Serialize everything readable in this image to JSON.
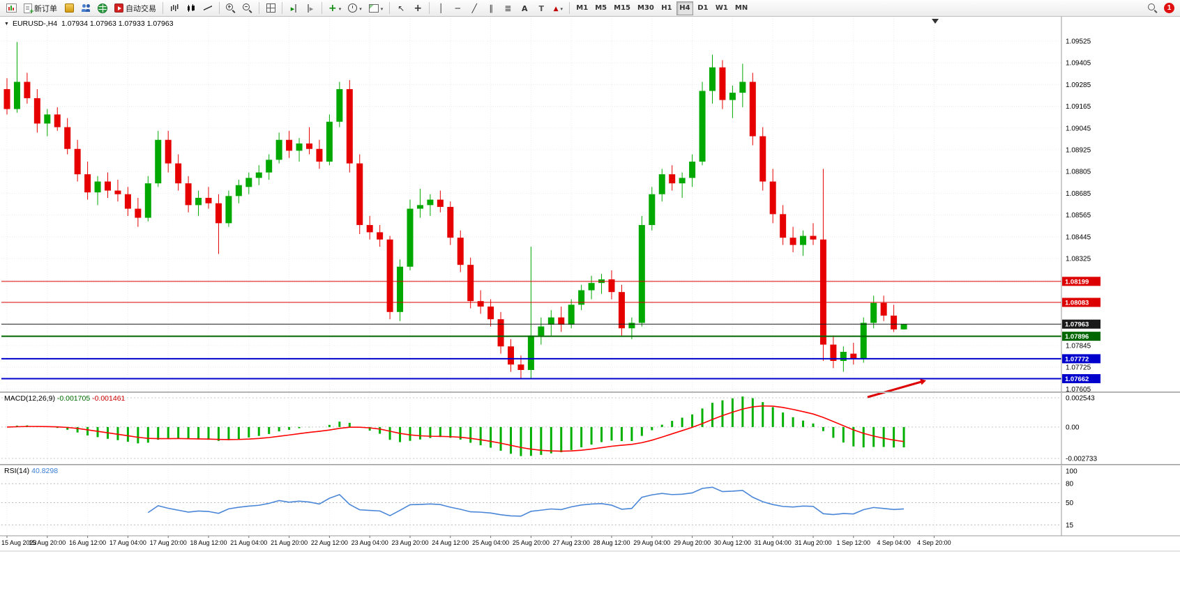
{
  "toolbar": {
    "new_order": "新订单",
    "autotrading": "自动交易",
    "timeframes": [
      "M1",
      "M5",
      "M15",
      "M30",
      "H1",
      "H4",
      "D1",
      "W1",
      "MN"
    ],
    "active_timeframe": "H4",
    "notification_badge": "1",
    "icons": {
      "new_chart": "mini-candle-chart",
      "new_order": "document-plus",
      "market_watch": "gold-panel",
      "community": "two-users",
      "web": "green-globe",
      "autotrading": "red-play-square",
      "chart_bars": "ohlc-bars",
      "chart_candles": "candlesticks",
      "chart_line": "line-chart",
      "zoom_in": "magnifier-plus",
      "zoom_out": "magnifier-minus",
      "tile_windows": "window-grid",
      "auto_scroll": "green-triangle-bar",
      "chart_shift": "bar-triangle",
      "indicators": "green-plus",
      "periods": "clock",
      "templates": "template-sheet",
      "cursor": "pointer-arrow",
      "crosshair": "cross",
      "vertical_line": "vertical-bar",
      "horizontal_line": "horizontal-bar",
      "trendline": "diagonal-line",
      "channel": "parallel-lines",
      "fibonacci": "stacked-lines",
      "text": "letter-A",
      "text_label": "letter-T",
      "arrows_tool": "red-triangle",
      "search": "magnifier"
    }
  },
  "chart": {
    "symbol_period": "EURUSD-,H4",
    "ohlc": "1.07934 1.07963 1.07933 1.07963",
    "macd_title": "MACD(12,26,9)",
    "macd_value_main": "-0.001705",
    "macd_value_signal": "-0.001461",
    "rsi_title": "RSI(14)",
    "rsi_value": "40.8298"
  },
  "chart_data": {
    "type": "candlestick",
    "symbol": "EURUSD-",
    "timeframe": "H4",
    "last_ohlc": {
      "open": 1.07934,
      "high": 1.07963,
      "low": 1.07933,
      "close": 1.07963
    },
    "price_axis": {
      "max_label": 1.09525,
      "min_label": 1.07605,
      "step": 0.0012
    },
    "time_labels": [
      "15 Aug 2023",
      "15 Aug 20:00",
      "16 Aug 12:00",
      "17 Aug 04:00",
      "17 Aug 20:00",
      "18 Aug 12:00",
      "21 Aug 04:00",
      "21 Aug 20:00",
      "22 Aug 12:00",
      "23 Aug 04:00",
      "23 Aug 20:00",
      "24 Aug 12:00",
      "25 Aug 04:00",
      "25 Aug 20:00",
      "27 Aug 23:00",
      "28 Aug 12:00",
      "29 Aug 04:00",
      "29 Aug 20:00",
      "30 Aug 12:00",
      "31 Aug 04:00",
      "31 Aug 20:00",
      "1 Sep 12:00",
      "4 Sep 04:00",
      "4 Sep 20:00"
    ],
    "candles": [
      [
        1.0926,
        1.0932,
        1.0912,
        1.0915
      ],
      [
        1.0915,
        1.0952,
        1.0913,
        1.093
      ],
      [
        1.093,
        1.0935,
        1.0918,
        1.0921
      ],
      [
        1.0921,
        1.0926,
        1.0902,
        1.0907
      ],
      [
        1.0907,
        1.0915,
        1.09,
        1.0912
      ],
      [
        1.0912,
        1.0916,
        1.0903,
        1.0905
      ],
      [
        1.0905,
        1.091,
        1.089,
        1.0893
      ],
      [
        1.0893,
        1.0898,
        1.0875,
        1.0879
      ],
      [
        1.0879,
        1.0886,
        1.0865,
        1.0869
      ],
      [
        1.0869,
        1.0878,
        1.0862,
        1.0875
      ],
      [
        1.0875,
        1.088,
        1.0866,
        1.087
      ],
      [
        1.087,
        1.0876,
        1.0864,
        1.0868
      ],
      [
        1.0868,
        1.0872,
        1.0856,
        1.086
      ],
      [
        1.086,
        1.0866,
        1.085,
        1.0855
      ],
      [
        1.0855,
        1.0878,
        1.0853,
        1.0874
      ],
      [
        1.0874,
        1.0903,
        1.0872,
        1.0898
      ],
      [
        1.0898,
        1.0903,
        1.088,
        1.0885
      ],
      [
        1.0885,
        1.089,
        1.087,
        1.0874
      ],
      [
        1.0874,
        1.0878,
        1.0858,
        1.0862
      ],
      [
        1.0862,
        1.087,
        1.0856,
        1.0866
      ],
      [
        1.0866,
        1.0872,
        1.086,
        1.0863
      ],
      [
        1.0863,
        1.0868,
        1.0835,
        1.0852
      ],
      [
        1.0852,
        1.087,
        1.085,
        1.0867
      ],
      [
        1.0867,
        1.0876,
        1.0863,
        1.0873
      ],
      [
        1.0872,
        1.088,
        1.0868,
        1.0877
      ],
      [
        1.0877,
        1.0884,
        1.0873,
        1.088
      ],
      [
        1.088,
        1.089,
        1.0876,
        1.0887
      ],
      [
        1.0887,
        1.0902,
        1.0885,
        1.0898
      ],
      [
        1.0898,
        1.0903,
        1.0888,
        1.0892
      ],
      [
        1.0892,
        1.0899,
        1.0886,
        1.0896
      ],
      [
        1.0896,
        1.0905,
        1.089,
        1.0893
      ],
      [
        1.0893,
        1.0898,
        1.0882,
        1.0886
      ],
      [
        1.0886,
        1.0912,
        1.0884,
        1.0908
      ],
      [
        1.0908,
        1.093,
        1.0905,
        1.0926
      ],
      [
        1.0926,
        1.0931,
        1.088,
        1.0885
      ],
      [
        1.0885,
        1.089,
        1.0846,
        1.0851
      ],
      [
        1.0851,
        1.0856,
        1.0843,
        1.0847
      ],
      [
        1.0847,
        1.0851,
        1.0839,
        1.0843
      ],
      [
        1.0843,
        1.0845,
        1.0799,
        1.0803
      ],
      [
        1.0803,
        1.0832,
        1.0798,
        1.0828
      ],
      [
        1.0828,
        1.0865,
        1.0826,
        1.086
      ],
      [
        1.086,
        1.0871,
        1.0855,
        1.0862
      ],
      [
        1.0862,
        1.0868,
        1.0856,
        1.0865
      ],
      [
        1.0865,
        1.087,
        1.0858,
        1.0861
      ],
      [
        1.0861,
        1.0864,
        1.084,
        1.0844
      ],
      [
        1.0844,
        1.0848,
        1.0825,
        1.0829
      ],
      [
        1.0829,
        1.0833,
        1.0805,
        1.0809
      ],
      [
        1.0809,
        1.0815,
        1.0802,
        1.0806
      ],
      [
        1.0806,
        1.081,
        1.0795,
        1.0799
      ],
      [
        1.0799,
        1.0803,
        1.078,
        1.0784
      ],
      [
        1.0784,
        1.0788,
        1.077,
        1.0774
      ],
      [
        1.0774,
        1.0779,
        1.0766,
        1.0771
      ],
      [
        1.0771,
        1.0839,
        1.0766,
        1.079
      ],
      [
        1.079,
        1.08,
        1.0785,
        1.0795
      ],
      [
        1.0796,
        1.0804,
        1.079,
        1.08
      ],
      [
        1.08,
        1.0806,
        1.0792,
        1.0796
      ],
      [
        1.0796,
        1.081,
        1.0794,
        1.0807
      ],
      [
        1.0807,
        1.0818,
        1.0804,
        1.0815
      ],
      [
        1.0815,
        1.0823,
        1.081,
        1.0819
      ],
      [
        1.0819,
        1.0824,
        1.0813,
        1.0821
      ],
      [
        1.0821,
        1.0826,
        1.081,
        1.0814
      ],
      [
        1.0814,
        1.0818,
        1.079,
        1.0794
      ],
      [
        1.0794,
        1.08,
        1.0788,
        1.0797
      ],
      [
        1.0797,
        1.0856,
        1.0795,
        1.0851
      ],
      [
        1.0851,
        1.0872,
        1.0848,
        1.0868
      ],
      [
        1.0868,
        1.0882,
        1.0864,
        1.0879
      ],
      [
        1.0879,
        1.0884,
        1.087,
        1.0874
      ],
      [
        1.0874,
        1.088,
        1.0866,
        1.0877
      ],
      [
        1.0877,
        1.089,
        1.0872,
        1.0886
      ],
      [
        1.0886,
        1.093,
        1.0884,
        1.0925
      ],
      [
        1.0925,
        1.0945,
        1.0918,
        1.0938
      ],
      [
        1.0938,
        1.0942,
        1.0915,
        1.092
      ],
      [
        1.092,
        1.0928,
        1.091,
        1.0924
      ],
      [
        1.0924,
        1.094,
        1.0916,
        1.093
      ],
      [
        1.093,
        1.0935,
        1.0895,
        1.09
      ],
      [
        1.09,
        1.0905,
        1.087,
        1.0875
      ],
      [
        1.0875,
        1.0882,
        1.0852,
        1.0857
      ],
      [
        1.0857,
        1.0862,
        1.084,
        1.0844
      ],
      [
        1.0844,
        1.085,
        1.0836,
        1.084
      ],
      [
        1.084,
        1.0848,
        1.0834,
        1.0845
      ],
      [
        1.0845,
        1.0852,
        1.084,
        1.0843
      ],
      [
        1.0843,
        1.0882,
        1.0776,
        1.0785
      ],
      [
        1.0785,
        1.079,
        1.0772,
        1.0776
      ],
      [
        1.0776,
        1.0784,
        1.077,
        1.0781
      ],
      [
        1.078,
        1.0786,
        1.0774,
        1.0777
      ],
      [
        1.0777,
        1.08,
        1.0775,
        1.0797
      ],
      [
        1.0797,
        1.0812,
        1.0794,
        1.0808
      ],
      [
        1.0808,
        1.0812,
        1.0798,
        1.0801
      ],
      [
        1.0801,
        1.0807,
        1.0792,
        1.07934
      ],
      [
        1.07934,
        1.07963,
        1.07933,
        1.07963
      ]
    ],
    "hlines": [
      {
        "price": 1.08199,
        "color": "#dd0000",
        "label": "1.08199",
        "width": 1
      },
      {
        "price": 1.08083,
        "color": "#dd0000",
        "label": "1.08083",
        "width": 1
      },
      {
        "price": 1.07963,
        "color": "#1a1a1a",
        "label": "1.07963",
        "width": 1,
        "role": "bid-line"
      },
      {
        "price": 1.07896,
        "color": "#006600",
        "label": "1.07896",
        "width": 2
      },
      {
        "price": 1.07772,
        "color": "#0000cc",
        "label": "1.07772",
        "width": 2
      },
      {
        "price": 1.07662,
        "color": "#0000cc",
        "label": "1.07662",
        "width": 2
      }
    ],
    "annotation_arrow": {
      "color": "#dd0000",
      "points_at_price": 1.07662
    },
    "macd": {
      "params": "12,26,9",
      "value_main": -0.001705,
      "value_signal": -0.001461,
      "axis_labels": [
        "0.002543",
        "0.00",
        "-0.002733"
      ],
      "hist_color": "#00b000",
      "signal_color": "#ff0000"
    },
    "rsi": {
      "period": 14,
      "value": 40.8298,
      "axis_labels": [
        "100",
        "80",
        "50",
        "15"
      ],
      "levels": [
        80,
        50,
        15
      ],
      "line_color": "#4a86d8"
    },
    "colors": {
      "up": "#00a800",
      "down": "#e60000",
      "bg": "#ffffff",
      "grid": "#ececec"
    }
  }
}
